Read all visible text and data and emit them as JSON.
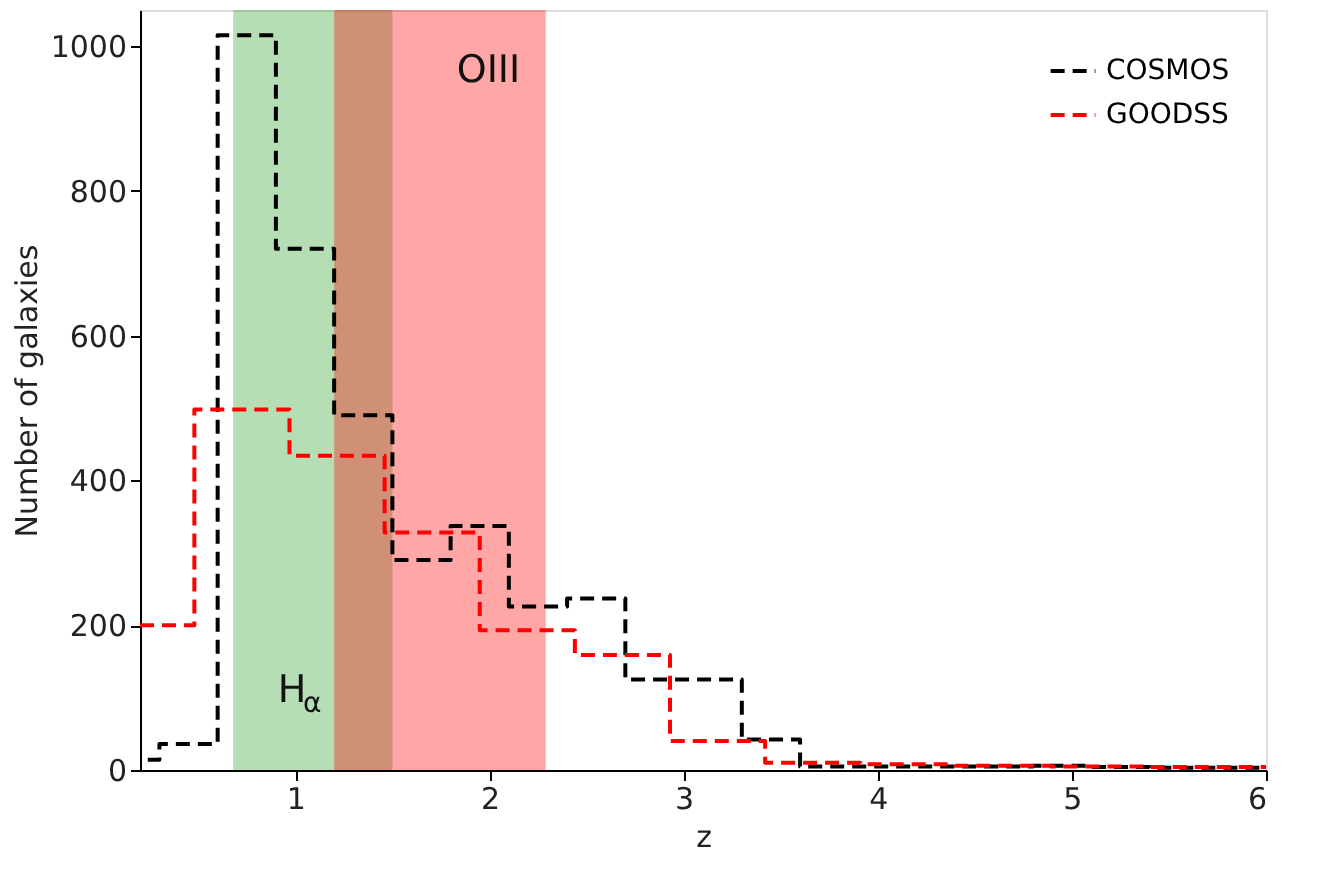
{
  "chart_data": {
    "type": "step",
    "xlabel": "z",
    "ylabel": "Number of galaxies",
    "xlim": [
      0.2,
      6
    ],
    "xticks": [
      1,
      2,
      3,
      4,
      5,
      6
    ],
    "ylim": [
      0,
      1050
    ],
    "yticks": [
      0,
      200,
      400,
      600,
      800,
      1000
    ],
    "series": [
      {
        "name": "COSMOS",
        "color": "#000000",
        "x": [
          0.24,
          0.3,
          0.6,
          0.9,
          1.2,
          1.5,
          1.8,
          2.1,
          2.4,
          2.7,
          3.0,
          3.3,
          3.6,
          3.9,
          4.2,
          4.5,
          4.8,
          5.1,
          5.4,
          5.7,
          6.0
        ],
        "values": [
          14,
          36,
          1015,
          720,
          490,
          290,
          337,
          226,
          237,
          125,
          125,
          42,
          5,
          5,
          5,
          5,
          6,
          4,
          3,
          3,
          3
        ]
      },
      {
        "name": "GOODSS",
        "color": "#ff0000",
        "x": [
          0.2,
          0.48,
          0.97,
          1.46,
          1.95,
          2.44,
          2.93,
          3.42,
          3.91,
          4.4,
          4.89,
          5.38,
          5.87,
          6.0
        ],
        "values": [
          200,
          498,
          434,
          328,
          193,
          159,
          40,
          10,
          8,
          6,
          5,
          4,
          4,
          4
        ]
      }
    ],
    "bands": [
      {
        "axis": "x",
        "from": 0.68,
        "to": 1.5,
        "label": "H$_{α}$",
        "color": "#2ca02c"
      },
      {
        "axis": "x",
        "from": 1.2,
        "to": 2.29,
        "label": "OIII",
        "color": "#ff0000"
      }
    ],
    "line_style": "dashed",
    "legend": "top right",
    "grid": false
  }
}
